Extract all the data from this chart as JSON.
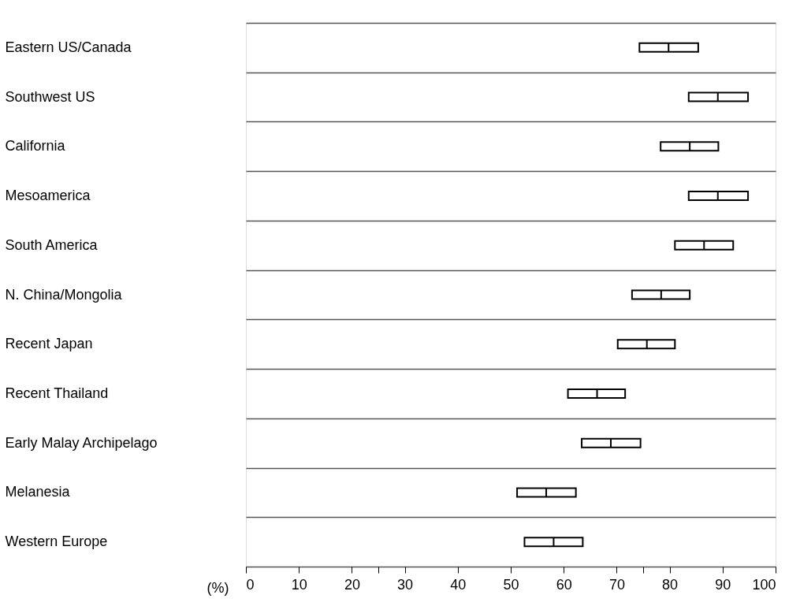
{
  "chart_data": {
    "type": "box",
    "orientation": "horizontal",
    "xlabel": "(%)",
    "categories": [
      "Eastern US/Canada",
      "Southwest US",
      "California",
      "Mesoamerica",
      "South America",
      "N. China/Mongolia",
      "Recent Japan",
      "Recent Thailand",
      "Early Malay Archipelago",
      "Melanesia",
      "Western Europe"
    ],
    "boxes": [
      {
        "low": 74.3,
        "q1": 74.3,
        "median": 79.8,
        "q3": 85.4,
        "high": 85.4
      },
      {
        "low": 83.6,
        "q1": 83.6,
        "median": 89.1,
        "q3": 94.8,
        "high": 94.8
      },
      {
        "low": 78.3,
        "q1": 78.3,
        "median": 83.8,
        "q3": 89.2,
        "high": 89.2
      },
      {
        "low": 83.6,
        "q1": 83.6,
        "median": 89.1,
        "q3": 94.8,
        "high": 94.8
      },
      {
        "low": 81.0,
        "q1": 81.0,
        "median": 86.5,
        "q3": 92.0,
        "high": 92.0
      },
      {
        "low": 72.9,
        "q1": 72.9,
        "median": 78.4,
        "q3": 83.8,
        "high": 83.8
      },
      {
        "low": 70.2,
        "q1": 70.2,
        "median": 75.7,
        "q3": 81.0,
        "high": 81.0
      },
      {
        "low": 60.8,
        "q1": 60.8,
        "median": 66.3,
        "q3": 71.6,
        "high": 71.6
      },
      {
        "low": 63.4,
        "q1": 63.4,
        "median": 68.9,
        "q3": 74.5,
        "high": 74.5
      },
      {
        "low": 51.2,
        "q1": 51.2,
        "median": 56.7,
        "q3": 62.3,
        "high": 62.3
      },
      {
        "low": 52.6,
        "q1": 52.6,
        "median": 58.1,
        "q3": 63.6,
        "high": 63.6
      }
    ],
    "color": "#000000",
    "xlim": [
      0,
      100
    ],
    "xticks": [
      0,
      10,
      20,
      {
        "value": 25,
        "label": null
      },
      30,
      40,
      50,
      60,
      70,
      {
        "value": 75,
        "label": null
      },
      80,
      90,
      100
    ],
    "grid": "y"
  }
}
